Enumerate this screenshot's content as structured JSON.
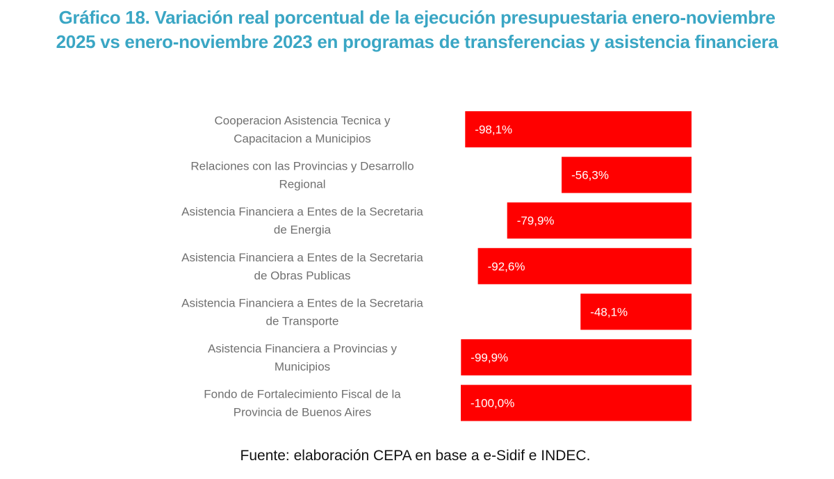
{
  "title": "Gráfico 18. Variación real porcentual de la ejecución presupuestaria enero-noviembre 2025 vs enero-noviembre 2023 en programas de transferencias y asistencia financiera",
  "source": "Fuente: elaboración CEPA en base a e-Sidif e INDEC.",
  "colors": {
    "bar": "#ff0000",
    "title": "#3aa6c4",
    "label": "#707070"
  },
  "chart_data": {
    "type": "bar",
    "orientation": "horizontal",
    "title": "Gráfico 18. Variación real porcentual de la ejecución presupuestaria enero-noviembre 2025 vs enero-noviembre 2023 en programas de transferencias y asistencia financiera",
    "xlabel": "",
    "ylabel": "",
    "xlim": [
      -100,
      0
    ],
    "grid": false,
    "legend": "none",
    "categories": [
      [
        "Cooperacion Asistencia Tecnica y",
        "Capacitacion a Municipios"
      ],
      [
        "Relaciones con las Provincias y Desarrollo",
        "Regional"
      ],
      [
        "Asistencia Financiera a Entes de la Secretaria",
        "de Energia"
      ],
      [
        "Asistencia Financiera a Entes de la Secretaria",
        "de Obras Publicas"
      ],
      [
        "Asistencia Financiera a Entes de la Secretaria",
        "de Transporte"
      ],
      [
        "Asistencia Financiera a Provincias y",
        "Municipios"
      ],
      [
        "Fondo de Fortalecimiento Fiscal de la",
        "Provincia de Buenos Aires"
      ]
    ],
    "values": [
      -98.1,
      -56.3,
      -79.9,
      -92.6,
      -48.1,
      -99.9,
      -100.0
    ],
    "data_labels": [
      "-98,1%",
      "-56,3%",
      "-79,9%",
      "-92,6%",
      "-48,1%",
      "-99,9%",
      "-100,0%"
    ],
    "unit": "%"
  }
}
